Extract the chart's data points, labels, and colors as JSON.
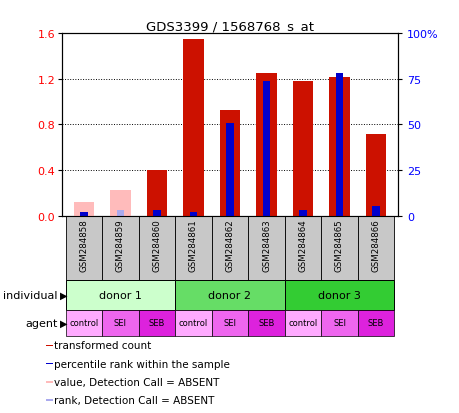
{
  "title": "GDS3399 / 1568768_s_at",
  "samples": [
    "GSM284858",
    "GSM284859",
    "GSM284860",
    "GSM284861",
    "GSM284862",
    "GSM284863",
    "GSM284864",
    "GSM284865",
    "GSM284866"
  ],
  "red_values": [
    0.12,
    0.22,
    0.4,
    1.55,
    0.93,
    1.25,
    1.18,
    1.22,
    0.72
  ],
  "blue_pct": [
    2.0,
    3.0,
    3.0,
    2.0,
    51.0,
    74.0,
    3.0,
    78.0,
    5.0
  ],
  "absent_red": [
    true,
    true,
    false,
    false,
    false,
    false,
    false,
    false,
    false
  ],
  "absent_blue": [
    false,
    true,
    false,
    false,
    false,
    false,
    false,
    false,
    false
  ],
  "donors": [
    {
      "label": "donor 1",
      "cols": [
        0,
        1,
        2
      ],
      "color": "#ccffcc"
    },
    {
      "label": "donor 2",
      "cols": [
        3,
        4,
        5
      ],
      "color": "#66dd66"
    },
    {
      "label": "donor 3",
      "cols": [
        6,
        7,
        8
      ],
      "color": "#33cc33"
    }
  ],
  "agents": [
    "control",
    "SEI",
    "SEB",
    "control",
    "SEI",
    "SEB",
    "control",
    "SEI",
    "SEB"
  ],
  "agent_colors": [
    "#ffaaff",
    "#ee66ee",
    "#dd22dd",
    "#ffaaff",
    "#ee66ee",
    "#dd22dd",
    "#ffaaff",
    "#ee66ee",
    "#dd22dd"
  ],
  "ylim_left": [
    0.0,
    1.6
  ],
  "ylim_right": [
    0,
    100
  ],
  "yticks_left": [
    0.0,
    0.4,
    0.8,
    1.2,
    1.6
  ],
  "yticks_right": [
    0,
    25,
    50,
    75,
    100
  ],
  "color_red": "#cc1100",
  "color_pink": "#ffbbbb",
  "color_blue": "#0000cc",
  "color_lightblue": "#aaaaee",
  "color_gray": "#c8c8c8"
}
